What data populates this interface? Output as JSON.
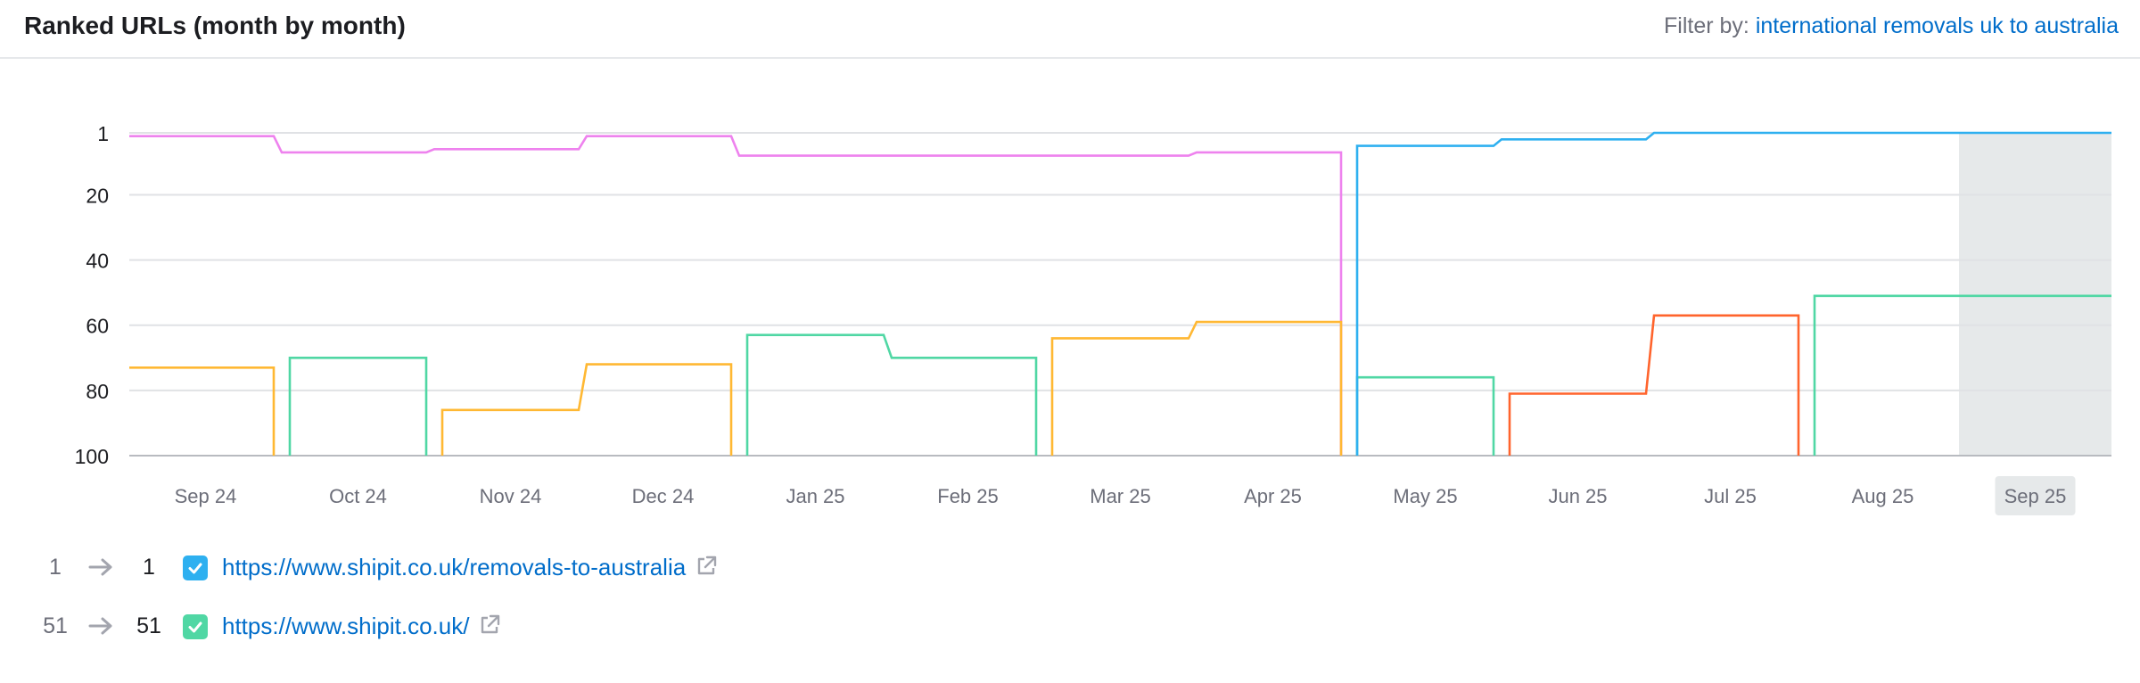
{
  "header": {
    "title": "Ranked URLs (month by month)",
    "filter_label": "Filter by:",
    "filter_value": "international removals uk to australia"
  },
  "chart_data": {
    "type": "line",
    "step": true,
    "y_reversed": true,
    "ylim": [
      1,
      100
    ],
    "y_ticks": [
      "1",
      "20",
      "40",
      "60",
      "80",
      "100"
    ],
    "y_tick_values": [
      1,
      20,
      40,
      60,
      80,
      100
    ],
    "x_labels": [
      "Sep 24",
      "Oct 24",
      "Nov 24",
      "Dec 24",
      "Jan 25",
      "Feb 25",
      "Mar 25",
      "Apr 25",
      "May 25",
      "Jun 25",
      "Jul 25",
      "Aug 25",
      "Sep 25"
    ],
    "highlighted_month": "Sep 25",
    "grid": true,
    "series": [
      {
        "color": "#ee82ee",
        "segments": [
          {
            "from": "Sep 24",
            "to": "Sep 24",
            "value": 2
          },
          {
            "from": "Oct 24",
            "to": "Oct 24",
            "value": 7
          },
          {
            "from": "Nov 24",
            "to": "Nov 24",
            "value": 6
          },
          {
            "from": "Dec 24",
            "to": "Dec 24",
            "value": 2
          },
          {
            "from": "Jan 25",
            "to": "Mar 25",
            "value": 8
          },
          {
            "from": "Apr 25",
            "to": "Apr 25",
            "value": 7
          }
        ]
      },
      {
        "color": "#ffb833",
        "segments": [
          {
            "from": "Sep 24",
            "to": "Sep 24",
            "value": 73
          },
          {
            "from": "Nov 24",
            "to": "Nov 24",
            "value": 86
          },
          {
            "from": "Dec 24",
            "to": "Dec 24",
            "value": 72
          },
          {
            "from": "Mar 25",
            "to": "Mar 25",
            "value": 64
          },
          {
            "from": "Apr 25",
            "to": "Apr 25",
            "value": 59
          }
        ]
      },
      {
        "color": "#50d7a4",
        "segments": [
          {
            "from": "Oct 24",
            "to": "Oct 24",
            "value": 70
          },
          {
            "from": "Jan 25",
            "to": "Jan 25",
            "value": 63
          },
          {
            "from": "Feb 25",
            "to": "Feb 25",
            "value": 70
          },
          {
            "from": "May 25",
            "to": "May 25",
            "value": 76
          },
          {
            "from": "Aug 25",
            "to": "Sep 25",
            "value": 51
          }
        ]
      },
      {
        "color": "#2eb0f0",
        "segments": [
          {
            "from": "May 25",
            "to": "May 25",
            "value": 5
          },
          {
            "from": "Jun 25",
            "to": "Jun 25",
            "value": 3
          },
          {
            "from": "Jul 25",
            "to": "Sep 25",
            "value": 1
          }
        ]
      },
      {
        "color": "#ff642d",
        "segments": [
          {
            "from": "Jun 25",
            "to": "Jun 25",
            "value": 81
          },
          {
            "from": "Jul 25",
            "to": "Jul 25",
            "value": 57
          }
        ]
      }
    ]
  },
  "legend": [
    {
      "from": "1",
      "to": "1",
      "url": "https://www.shipit.co.uk/removals-to-australia",
      "color": "#2eb0f0",
      "checked": true
    },
    {
      "from": "51",
      "to": "51",
      "url": "https://www.shipit.co.uk/",
      "color": "#50d7a4",
      "checked": true
    }
  ]
}
